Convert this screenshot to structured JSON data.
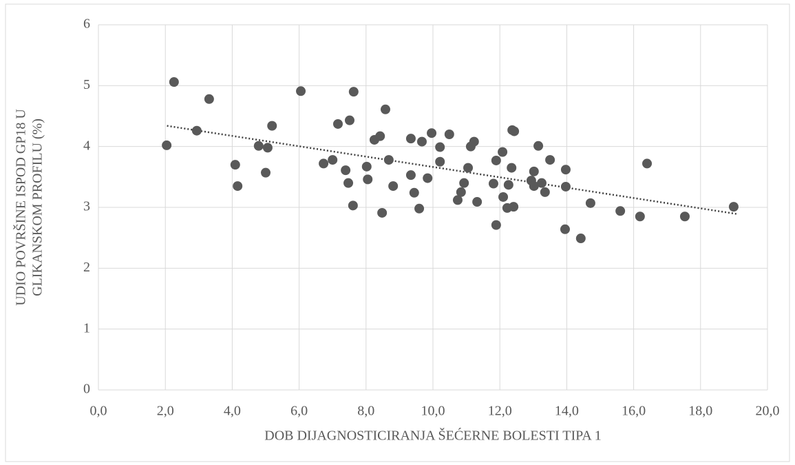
{
  "chart_data": {
    "type": "scatter",
    "xlabel": "DOB DIJAGNOSTICIRANJA ŠEĆERNE BOLESTI TIPA 1",
    "ylabel": [
      "UDIO POVRŠINE ISPOD GP18 U",
      "GLIKANSKOM PROFILU (%)"
    ],
    "color": "#595959",
    "x": [
      2.04,
      2.26,
      2.94,
      3.31,
      4.09,
      4.16,
      4.79,
      5.06,
      5.0,
      5.19,
      6.05,
      6.73,
      7.0,
      7.16,
      7.39,
      7.47,
      7.51,
      7.63,
      7.61,
      8.02,
      8.05,
      8.25,
      8.42,
      8.48,
      8.58,
      8.68,
      8.81,
      9.34,
      9.34,
      9.44,
      9.59,
      9.67,
      9.84,
      9.96,
      10.21,
      10.21,
      10.49,
      10.74,
      10.84,
      10.93,
      11.05,
      11.13,
      11.23,
      11.32,
      11.81,
      11.89,
      11.89,
      12.08,
      12.1,
      12.22,
      12.26,
      12.35,
      12.37,
      12.43,
      12.41,
      12.94,
      13.02,
      13.02,
      13.15,
      13.25,
      13.35,
      13.5,
      13.97,
      13.97,
      13.95,
      14.42,
      14.71,
      15.6,
      16.19,
      16.4,
      17.53,
      18.99
    ],
    "values": [
      4.02,
      5.06,
      4.26,
      4.78,
      3.7,
      3.35,
      4.01,
      3.98,
      3.57,
      4.34,
      4.91,
      3.72,
      3.78,
      4.37,
      3.61,
      3.4,
      4.43,
      4.9,
      3.03,
      3.67,
      3.46,
      4.11,
      4.17,
      2.91,
      4.61,
      3.78,
      3.35,
      4.13,
      3.53,
      3.24,
      2.98,
      4.08,
      3.48,
      4.22,
      3.99,
      3.75,
      4.2,
      3.12,
      3.25,
      3.4,
      3.65,
      4.0,
      4.08,
      3.09,
      3.39,
      2.71,
      3.77,
      3.91,
      3.17,
      2.99,
      3.37,
      3.65,
      4.27,
      4.25,
      3.01,
      3.44,
      3.59,
      3.35,
      4.01,
      3.4,
      3.25,
      3.78,
      3.62,
      3.34,
      2.64,
      2.49,
      3.07,
      2.94,
      2.85,
      3.72,
      2.85,
      3.01
    ],
    "trendline": {
      "x": [
        2.05,
        19.1
      ],
      "values": [
        4.34,
        2.89
      ],
      "color": "#404040"
    },
    "xlim": [
      0,
      20
    ],
    "xticks": [
      {
        "value": 0,
        "label": "0,0"
      },
      {
        "value": 2,
        "label": "2,0"
      },
      {
        "value": 4,
        "label": "4,0"
      },
      {
        "value": 6,
        "label": "6,0"
      },
      {
        "value": 8,
        "label": "8,0"
      },
      {
        "value": 10,
        "label": "10,0"
      },
      {
        "value": 12,
        "label": "12,0"
      },
      {
        "value": 14,
        "label": "14,0"
      },
      {
        "value": 16,
        "label": "16,0"
      },
      {
        "value": 18,
        "label": "18,0"
      },
      {
        "value": 20,
        "label": "20,0"
      }
    ],
    "ylim": [
      0,
      6
    ],
    "yticks": [
      0,
      1,
      2,
      3,
      4,
      5,
      6
    ],
    "grid": true
  }
}
